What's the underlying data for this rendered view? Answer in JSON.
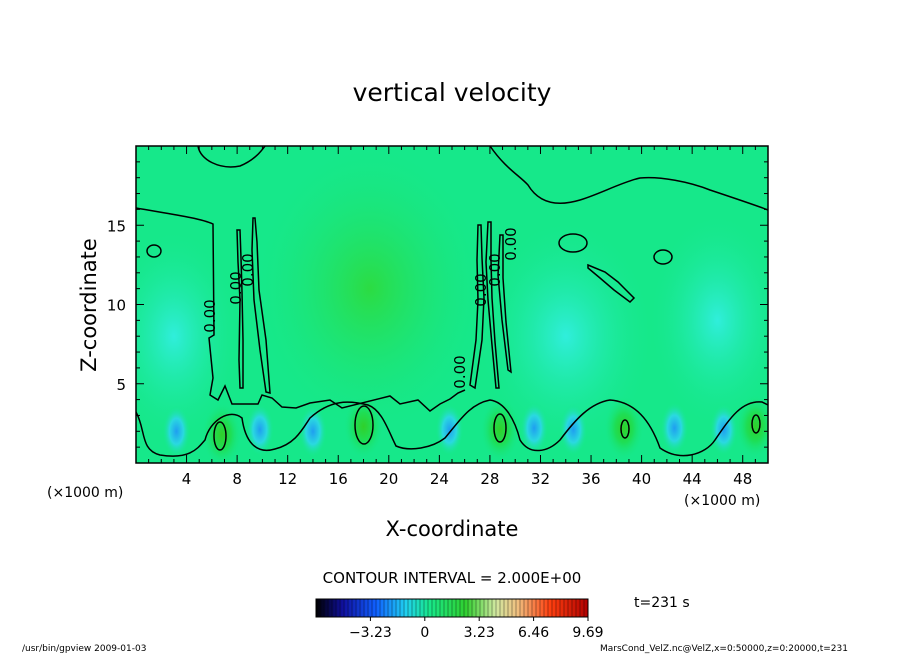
{
  "chart_data": {
    "type": "heatmap",
    "title": "vertical velocity",
    "xlabel": "X-coordinate",
    "ylabel": "Z-coordinate",
    "x_unit": "(×1000 m)",
    "xlim": [
      0,
      50
    ],
    "ylim": [
      0,
      20
    ],
    "x_ticks": [
      4,
      8,
      12,
      16,
      20,
      24,
      28,
      32,
      36,
      40,
      44,
      48
    ],
    "y_ticks": [
      5,
      10,
      15
    ],
    "contour_interval": "CONTOUR INTERVAL = 2.000E+00",
    "contour_labels": [
      "0.00",
      "0.00",
      "0.00",
      "0.00",
      "0.00",
      "0.00",
      "0.00"
    ],
    "colorbar_ticks": [
      "−3.23",
      "0",
      "3.23",
      "6.46",
      "9.69"
    ],
    "colorbar_values": [
      -3.23,
      0,
      3.23,
      6.46,
      9.69
    ],
    "colorbar_range": [
      -6.46,
      9.69
    ],
    "time_label": "t=231 s",
    "updrafts": [
      {
        "x": 6.8,
        "z": 1.8
      },
      {
        "x": 18.0,
        "z": 2.3
      },
      {
        "x": 28.8,
        "z": 2.1
      },
      {
        "x": 38.6,
        "z": 2.2
      },
      {
        "x": 49.0,
        "z": 2.3
      }
    ],
    "downdrafts": [
      {
        "x": 3.2,
        "z": 2.0
      },
      {
        "x": 9.8,
        "z": 2.1
      },
      {
        "x": 14.0,
        "z": 2.0
      },
      {
        "x": 24.8,
        "z": 2.1
      },
      {
        "x": 31.5,
        "z": 2.2
      },
      {
        "x": 34.6,
        "z": 2.1
      },
      {
        "x": 42.6,
        "z": 2.2
      },
      {
        "x": 46.5,
        "z": 2.1
      }
    ],
    "grid": false
  },
  "footer": {
    "left": "/usr/bin/gpview   2009-01-03",
    "right": "MarsCond_VelZ.nc@VelZ,x=0:50000,z=0:20000,t=231"
  },
  "colors": {
    "background_field": "#16e88a",
    "contour": "#000000"
  }
}
